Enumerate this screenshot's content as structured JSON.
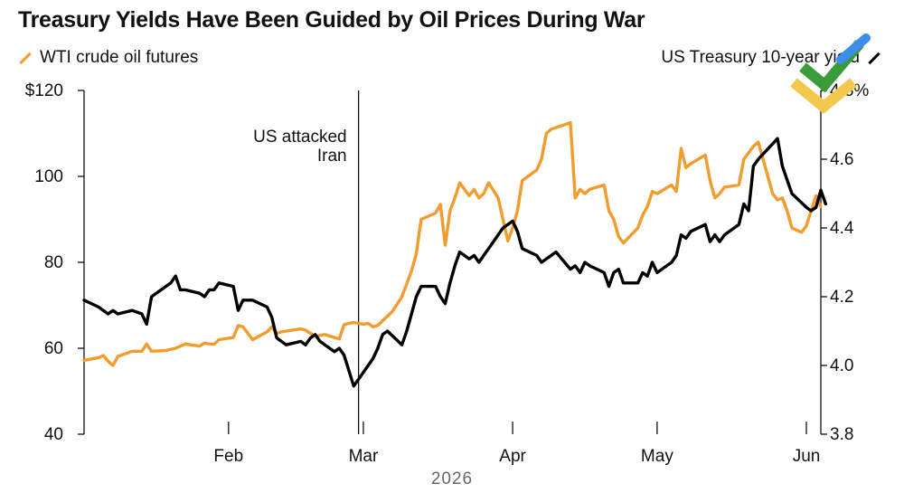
{
  "colors": {
    "oil": "#F39C2E",
    "treasury": "#000000",
    "axis": "#111111"
  },
  "chart_data": {
    "type": "line",
    "title": "Treasury Yields Have Been Guided by Oil Prices During War",
    "x_axis": {
      "tick_labels": [
        "Feb",
        "Mar",
        "Apr",
        "May",
        "Jun"
      ],
      "tick_dates": [
        "2026-02-01",
        "2026-03-01",
        "2026-04-01",
        "2026-05-01",
        "2026-06-01"
      ],
      "year_label": "2026",
      "range": [
        "2026-01-02",
        "2026-06-04"
      ]
    },
    "y_left": {
      "tick_labels": [
        "$120",
        "100",
        "80",
        "60",
        "40"
      ],
      "ticks": [
        120,
        100,
        80,
        60,
        40
      ],
      "range": [
        40,
        120
      ]
    },
    "y_right": {
      "tick_labels": [
        "4.8%",
        "4.6",
        "4.4",
        "4.2",
        "4.0",
        "3.8"
      ],
      "ticks": [
        4.8,
        4.6,
        4.4,
        4.2,
        4.0,
        3.8
      ],
      "range": [
        3.8,
        4.8
      ]
    },
    "annotation": {
      "date": "2026-02-28",
      "line1": "US attacked",
      "line2": "Iran"
    },
    "series": [
      {
        "name": "WTI crude oil futures",
        "axis": "left",
        "points": [
          [
            "2026-01-02",
            57.2
          ],
          [
            "2026-01-05",
            57.8
          ],
          [
            "2026-01-06",
            58.3
          ],
          [
            "2026-01-07",
            57.0
          ],
          [
            "2026-01-08",
            56.0
          ],
          [
            "2026-01-09",
            58.1
          ],
          [
            "2026-01-12",
            59.3
          ],
          [
            "2026-01-14",
            59.3
          ],
          [
            "2026-01-15",
            61.0
          ],
          [
            "2026-01-16",
            59.3
          ],
          [
            "2026-01-19",
            59.5
          ],
          [
            "2026-01-21",
            60.0
          ],
          [
            "2026-01-23",
            61.0
          ],
          [
            "2026-01-26",
            60.5
          ],
          [
            "2026-01-27",
            61.2
          ],
          [
            "2026-01-28",
            61.0
          ],
          [
            "2026-01-29",
            60.9
          ],
          [
            "2026-01-30",
            62.0
          ],
          [
            "2026-02-02",
            62.5
          ],
          [
            "2026-02-03",
            65.3
          ],
          [
            "2026-02-04",
            65.0
          ],
          [
            "2026-02-05",
            63.5
          ],
          [
            "2026-02-06",
            62.0
          ],
          [
            "2026-02-09",
            63.8
          ],
          [
            "2026-02-10",
            65.0
          ],
          [
            "2026-02-11",
            63.5
          ],
          [
            "2026-02-12",
            63.8
          ],
          [
            "2026-02-13",
            64.0
          ],
          [
            "2026-02-16",
            64.5
          ],
          [
            "2026-02-17",
            64.2
          ],
          [
            "2026-02-18",
            63.5
          ],
          [
            "2026-02-19",
            62.8
          ],
          [
            "2026-02-20",
            63.0
          ],
          [
            "2026-02-21",
            63.2
          ],
          [
            "2026-02-23",
            62.5
          ],
          [
            "2026-02-24",
            62.2
          ],
          [
            "2026-02-25",
            65.5
          ],
          [
            "2026-02-26",
            65.8
          ],
          [
            "2026-02-27",
            66.0
          ],
          [
            "2026-03-01",
            65.6
          ],
          [
            "2026-03-02",
            65.8
          ],
          [
            "2026-03-03",
            65.0
          ],
          [
            "2026-03-04",
            65.3
          ],
          [
            "2026-03-06",
            67.5
          ],
          [
            "2026-03-07",
            68.5
          ],
          [
            "2026-03-09",
            72.0
          ],
          [
            "2026-03-10",
            75.0
          ],
          [
            "2026-03-11",
            78.0
          ],
          [
            "2026-03-12",
            82.0
          ],
          [
            "2026-03-13",
            90.0
          ],
          [
            "2026-03-16",
            91.5
          ],
          [
            "2026-03-17",
            93.5
          ],
          [
            "2026-03-18",
            84.0
          ],
          [
            "2026-03-19",
            92.0
          ],
          [
            "2026-03-20",
            95.0
          ],
          [
            "2026-03-21",
            98.5
          ],
          [
            "2026-03-23",
            95.5
          ],
          [
            "2026-03-24",
            97.0
          ],
          [
            "2026-03-25",
            95.0
          ],
          [
            "2026-03-26",
            96.0
          ],
          [
            "2026-03-27",
            98.5
          ],
          [
            "2026-03-29",
            95.0
          ],
          [
            "2026-03-30",
            90.0
          ],
          [
            "2026-03-31",
            85.0
          ],
          [
            "2026-04-01",
            88.0
          ],
          [
            "2026-04-02",
            92.0
          ],
          [
            "2026-04-03",
            99.0
          ],
          [
            "2026-04-06",
            101.5
          ],
          [
            "2026-04-07",
            104.0
          ],
          [
            "2026-04-08",
            110.0
          ],
          [
            "2026-04-09",
            111.0
          ],
          [
            "2026-04-13",
            112.5
          ],
          [
            "2026-04-14",
            95.0
          ],
          [
            "2026-04-15",
            97.0
          ],
          [
            "2026-04-16",
            96.0
          ],
          [
            "2026-04-17",
            97.0
          ],
          [
            "2026-04-20",
            98.0
          ],
          [
            "2026-04-21",
            92.0
          ],
          [
            "2026-04-22",
            90.0
          ],
          [
            "2026-04-23",
            86.0
          ],
          [
            "2026-04-24",
            84.5
          ],
          [
            "2026-04-27",
            88.0
          ],
          [
            "2026-04-28",
            91.0
          ],
          [
            "2026-04-29",
            93.0
          ],
          [
            "2026-04-30",
            96.5
          ],
          [
            "2026-05-01",
            96.0
          ],
          [
            "2026-05-04",
            98.0
          ],
          [
            "2026-05-05",
            96.5
          ],
          [
            "2026-05-06",
            106.5
          ],
          [
            "2026-05-07",
            102.0
          ],
          [
            "2026-05-08",
            103.0
          ],
          [
            "2026-05-11",
            105.0
          ],
          [
            "2026-05-12",
            99.0
          ],
          [
            "2026-05-13",
            95.0
          ],
          [
            "2026-05-14",
            96.0
          ],
          [
            "2026-05-15",
            97.5
          ],
          [
            "2026-05-18",
            98.0
          ],
          [
            "2026-05-19",
            104.0
          ],
          [
            "2026-05-20",
            105.5
          ],
          [
            "2026-05-21",
            107.0
          ],
          [
            "2026-05-22",
            108.0
          ],
          [
            "2026-05-25",
            96.0
          ],
          [
            "2026-05-26",
            94.5
          ],
          [
            "2026-05-27",
            95.0
          ],
          [
            "2026-05-28",
            92.0
          ],
          [
            "2026-05-29",
            88.0
          ],
          [
            "2026-05-31",
            87.0
          ],
          [
            "2026-06-01",
            88.5
          ],
          [
            "2026-06-02",
            92.0
          ],
          [
            "2026-06-03",
            95.5
          ],
          [
            "2026-06-04",
            93.0
          ]
        ]
      },
      {
        "name": "US Treasury 10-year yield",
        "axis": "right",
        "points": [
          [
            "2026-01-02",
            4.19
          ],
          [
            "2026-01-05",
            4.17
          ],
          [
            "2026-01-06",
            4.16
          ],
          [
            "2026-01-07",
            4.15
          ],
          [
            "2026-01-08",
            4.16
          ],
          [
            "2026-01-09",
            4.15
          ],
          [
            "2026-01-12",
            4.16
          ],
          [
            "2026-01-14",
            4.15
          ],
          [
            "2026-01-15",
            4.12
          ],
          [
            "2026-01-16",
            4.2
          ],
          [
            "2026-01-20",
            4.24
          ],
          [
            "2026-01-21",
            4.26
          ],
          [
            "2026-01-22",
            4.22
          ],
          [
            "2026-01-23",
            4.22
          ],
          [
            "2026-01-26",
            4.21
          ],
          [
            "2026-01-27",
            4.2
          ],
          [
            "2026-01-28",
            4.22
          ],
          [
            "2026-01-29",
            4.22
          ],
          [
            "2026-01-30",
            4.24
          ],
          [
            "2026-02-02",
            4.23
          ],
          [
            "2026-02-03",
            4.16
          ],
          [
            "2026-02-04",
            4.19
          ],
          [
            "2026-02-05",
            4.19
          ],
          [
            "2026-02-06",
            4.19
          ],
          [
            "2026-02-09",
            4.17
          ],
          [
            "2026-02-10",
            4.14
          ],
          [
            "2026-02-11",
            4.08
          ],
          [
            "2026-02-13",
            4.06
          ],
          [
            "2026-02-16",
            4.07
          ],
          [
            "2026-02-17",
            4.06
          ],
          [
            "2026-02-18",
            4.08
          ],
          [
            "2026-02-19",
            4.09
          ],
          [
            "2026-02-20",
            4.07
          ],
          [
            "2026-02-23",
            4.04
          ],
          [
            "2026-02-24",
            4.05
          ],
          [
            "2026-02-25",
            4.03
          ],
          [
            "2026-02-27",
            3.94
          ],
          [
            "2026-03-02",
            4.0
          ],
          [
            "2026-03-03",
            4.02
          ],
          [
            "2026-03-04",
            4.05
          ],
          [
            "2026-03-05",
            4.09
          ],
          [
            "2026-03-06",
            4.1
          ],
          [
            "2026-03-09",
            4.06
          ],
          [
            "2026-03-10",
            4.1
          ],
          [
            "2026-03-11",
            4.15
          ],
          [
            "2026-03-12",
            4.2
          ],
          [
            "2026-03-13",
            4.23
          ],
          [
            "2026-03-16",
            4.23
          ],
          [
            "2026-03-17",
            4.2
          ],
          [
            "2026-03-18",
            4.18
          ],
          [
            "2026-03-19",
            4.24
          ],
          [
            "2026-03-20",
            4.29
          ],
          [
            "2026-03-21",
            4.33
          ],
          [
            "2026-03-23",
            4.31
          ],
          [
            "2026-03-24",
            4.32
          ],
          [
            "2026-03-25",
            4.3
          ],
          [
            "2026-03-26",
            4.32
          ],
          [
            "2026-03-27",
            4.34
          ],
          [
            "2026-03-30",
            4.4
          ],
          [
            "2026-04-01",
            4.42
          ],
          [
            "2026-04-02",
            4.39
          ],
          [
            "2026-04-03",
            4.34
          ],
          [
            "2026-04-06",
            4.32
          ],
          [
            "2026-04-07",
            4.3
          ],
          [
            "2026-04-08",
            4.31
          ],
          [
            "2026-04-09",
            4.32
          ],
          [
            "2026-04-10",
            4.33
          ],
          [
            "2026-04-13",
            4.28
          ],
          [
            "2026-04-14",
            4.29
          ],
          [
            "2026-04-15",
            4.27
          ],
          [
            "2026-04-16",
            4.3
          ],
          [
            "2026-04-17",
            4.29
          ],
          [
            "2026-04-20",
            4.27
          ],
          [
            "2026-04-21",
            4.23
          ],
          [
            "2026-04-22",
            4.27
          ],
          [
            "2026-04-23",
            4.28
          ],
          [
            "2026-04-24",
            4.24
          ],
          [
            "2026-04-27",
            4.24
          ],
          [
            "2026-04-28",
            4.27
          ],
          [
            "2026-04-29",
            4.26
          ],
          [
            "2026-04-30",
            4.3
          ],
          [
            "2026-05-01",
            4.27
          ],
          [
            "2026-05-04",
            4.3
          ],
          [
            "2026-05-05",
            4.32
          ],
          [
            "2026-05-06",
            4.38
          ],
          [
            "2026-05-07",
            4.37
          ],
          [
            "2026-05-08",
            4.39
          ],
          [
            "2026-05-11",
            4.41
          ],
          [
            "2026-05-12",
            4.36
          ],
          [
            "2026-05-13",
            4.38
          ],
          [
            "2026-05-14",
            4.36
          ],
          [
            "2026-05-15",
            4.38
          ],
          [
            "2026-05-18",
            4.41
          ],
          [
            "2026-05-19",
            4.47
          ],
          [
            "2026-05-20",
            4.45
          ],
          [
            "2026-05-21",
            4.58
          ],
          [
            "2026-05-22",
            4.6
          ],
          [
            "2026-05-26",
            4.66
          ],
          [
            "2026-05-27",
            4.58
          ],
          [
            "2026-05-28",
            4.54
          ],
          [
            "2026-05-29",
            4.5
          ],
          [
            "2026-06-01",
            4.46
          ],
          [
            "2026-06-02",
            4.45
          ],
          [
            "2026-06-03",
            4.46
          ],
          [
            "2026-06-04",
            4.51
          ],
          [
            "2026-06-05",
            4.47
          ]
        ]
      }
    ]
  }
}
